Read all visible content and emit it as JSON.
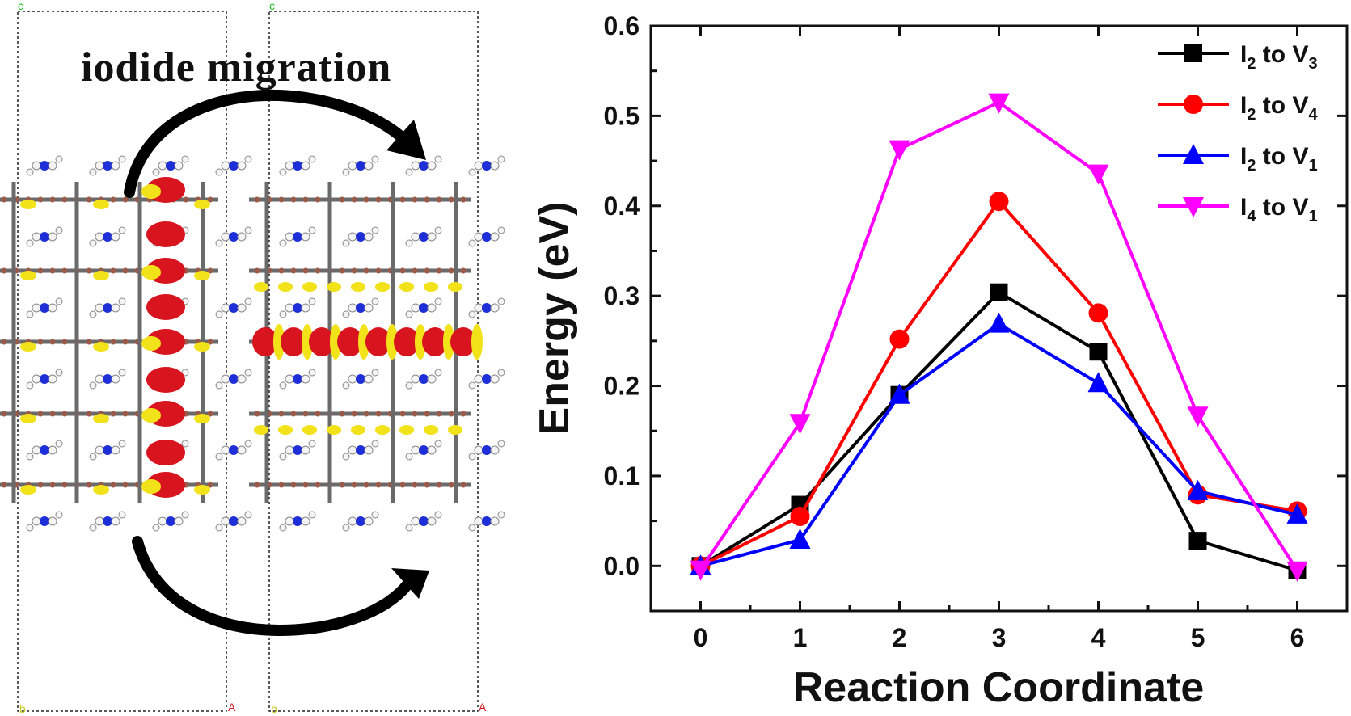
{
  "panel_left": {
    "title": "iodide migration",
    "corner_labels": {
      "c": "c",
      "a": "A",
      "b": "b"
    },
    "colors": {
      "isosurface_red": "#d8141e",
      "isosurface_yellow": "#f2e21a",
      "lead_gray": "#6a6a6a",
      "iodine_brown": "#9a5a4a",
      "nitrogen_blue": "#1e2fd8",
      "hydrogen_white": "#f4f4f4"
    }
  },
  "chart_data": {
    "type": "line",
    "title": "",
    "xlabel": "Reaction Coordinate",
    "ylabel": "Energy (eV)",
    "x": [
      0,
      1,
      2,
      3,
      4,
      5,
      6
    ],
    "xlim": [
      -0.5,
      6.5
    ],
    "ylim": [
      -0.05,
      0.6
    ],
    "xticks": [
      "0",
      "1",
      "2",
      "3",
      "4",
      "5",
      "6"
    ],
    "yticks": [
      "0.0",
      "0.1",
      "0.2",
      "0.3",
      "0.4",
      "0.5",
      "0.6"
    ],
    "legend_position": "top-right",
    "series": [
      {
        "name": "I2 to V3",
        "sub_a": "2",
        "sub_b": "3",
        "color": "#000000",
        "marker": "square",
        "values": [
          0.0,
          0.068,
          0.19,
          0.304,
          0.238,
          0.028,
          -0.005
        ]
      },
      {
        "name": "I2 to V4",
        "sub_a": "2",
        "sub_b": "4",
        "color": "#ff0000",
        "marker": "circle",
        "values": [
          0.0,
          0.055,
          0.252,
          0.405,
          0.281,
          0.079,
          0.061
        ]
      },
      {
        "name": "I2 to V1",
        "sub_a": "2",
        "sub_b": "1",
        "color": "#0000ff",
        "marker": "triangle-up",
        "values": [
          0.0,
          0.029,
          0.19,
          0.269,
          0.203,
          0.083,
          0.057
        ]
      },
      {
        "name": "I4 to V1",
        "sub_a": "4",
        "sub_b": "1",
        "color": "#ff00ff",
        "marker": "triangle-down",
        "values": [
          -0.004,
          0.159,
          0.463,
          0.515,
          0.436,
          0.167,
          -0.005
        ]
      }
    ]
  }
}
